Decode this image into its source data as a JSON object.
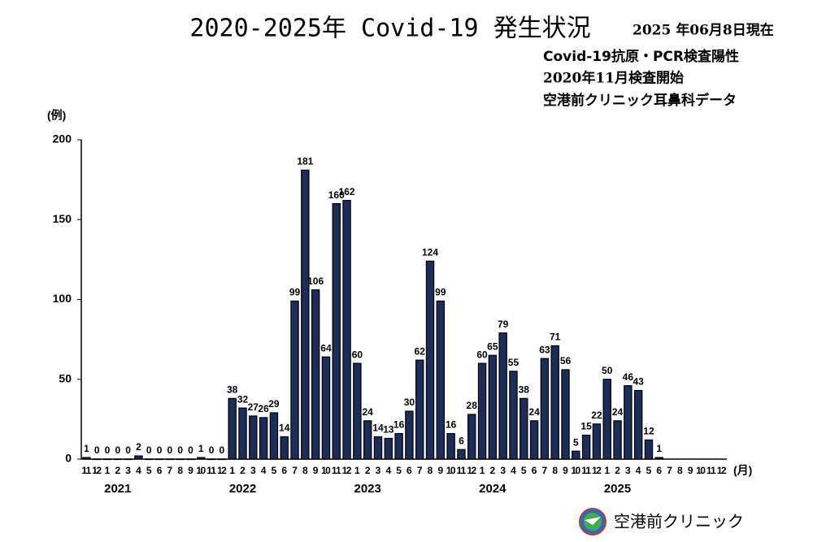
{
  "chart_data": {
    "type": "bar",
    "title": "2020-2025年 Covid-19 発生状況",
    "notes": [
      "2025 年06月8日現在",
      "Covid-19抗原・PCR検査陽性",
      "2020年11月検査開始",
      "空港前クリニック耳鼻科データ"
    ],
    "y_label": "(例)",
    "x_label": "(月)",
    "categories": [
      "11",
      "12",
      "1",
      "2",
      "3",
      "4",
      "5",
      "6",
      "7",
      "8",
      "9",
      "10",
      "11",
      "12",
      "1",
      "2",
      "3",
      "4",
      "5",
      "6",
      "7",
      "8",
      "9",
      "10",
      "11",
      "12",
      "1",
      "2",
      "3",
      "4",
      "5",
      "6",
      "7",
      "8",
      "9",
      "10",
      "11",
      "12",
      "1",
      "2",
      "3",
      "4",
      "5",
      "6",
      "7",
      "8",
      "9",
      "10",
      "11",
      "12",
      "1",
      "2",
      "3",
      "4",
      "5",
      "6",
      "7",
      "8",
      "9",
      "10",
      "11",
      "12"
    ],
    "years": [
      "2021",
      "2022",
      "2023",
      "2024",
      "2025"
    ],
    "values": [
      1,
      0,
      0,
      0,
      0,
      2,
      0,
      0,
      0,
      0,
      0,
      1,
      0,
      0,
      38,
      32,
      27,
      26,
      29,
      14,
      99,
      181,
      106,
      64,
      160,
      162,
      60,
      24,
      14,
      13,
      16,
      30,
      62,
      124,
      99,
      16,
      6,
      28,
      60,
      65,
      79,
      55,
      38,
      24,
      63,
      71,
      56,
      5,
      15,
      22,
      50,
      24,
      46,
      43,
      12,
      1,
      null,
      null,
      null,
      null,
      null,
      null
    ],
    "color": "#1c2d5a",
    "ylim": [
      0,
      200
    ],
    "yticks": [
      0,
      50,
      100,
      150,
      200
    ],
    "footer": "空港前クリニック"
  }
}
